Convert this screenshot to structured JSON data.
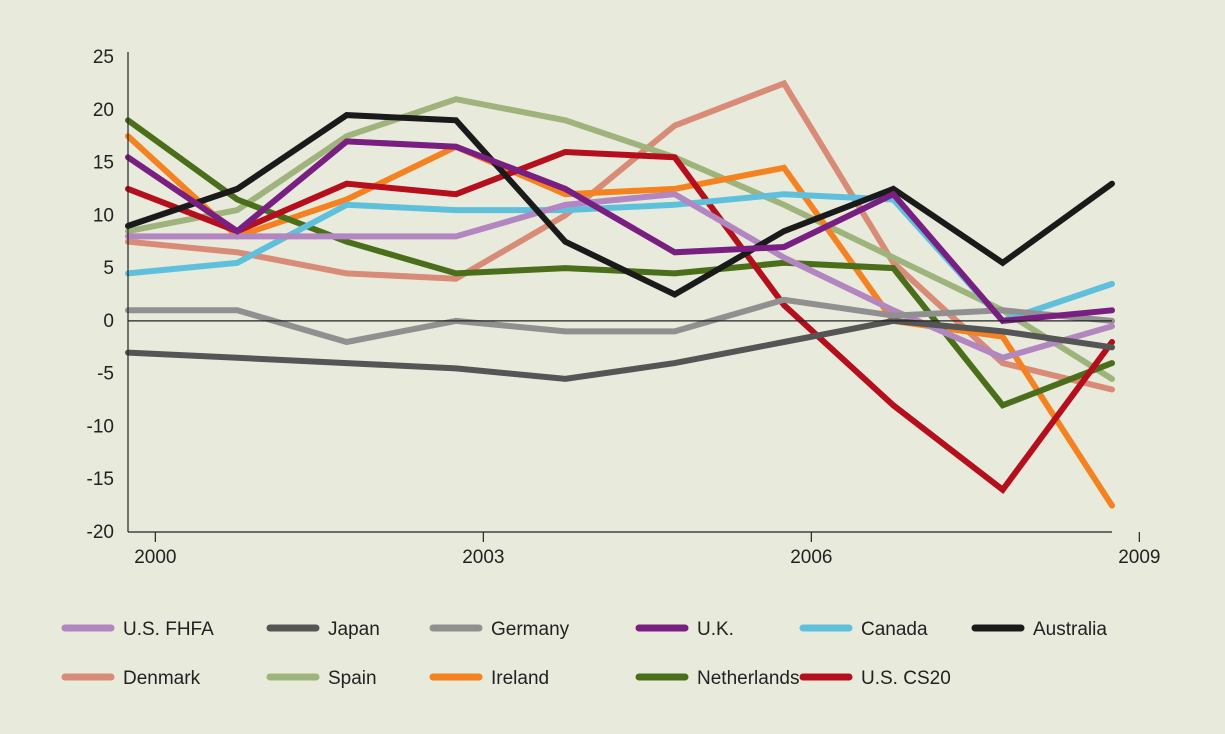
{
  "chart_data": {
    "type": "line",
    "title": "",
    "xlabel": "",
    "ylabel": "",
    "x": [
      1999.75,
      2000.75,
      2001.75,
      2002.75,
      2003.75,
      2004.75,
      2005.75,
      2006.75,
      2007.75,
      2008.75
    ],
    "xlim": [
      1999.75,
      2008.75
    ],
    "xticks": [
      2000,
      2003,
      2006,
      2009
    ],
    "xtick_labels": [
      "2000",
      "2003",
      "2006",
      "2009"
    ],
    "ylim": [
      -20,
      25
    ],
    "yticks": [
      25,
      20,
      15,
      10,
      5,
      0,
      -5,
      -10,
      -15,
      -20
    ],
    "ytick_labels": [
      "25",
      "20",
      "15",
      "10",
      "5",
      "0",
      "-5",
      "-10",
      "-15",
      "-20"
    ],
    "grid": false,
    "legend_position": "bottom",
    "series": [
      {
        "name": "Denmark",
        "color": "#d88c78",
        "values": [
          7.5,
          6.5,
          4.5,
          4.0,
          10.0,
          18.5,
          22.5,
          5.5,
          -4.0,
          -6.5
        ]
      },
      {
        "name": "Spain",
        "color": "#9fb47c",
        "values": [
          8.5,
          10.5,
          17.5,
          21.0,
          19.0,
          15.5,
          11.0,
          6.0,
          1.0,
          -5.5
        ]
      },
      {
        "name": "Ireland",
        "color": "#f58220",
        "values": [
          17.5,
          8.0,
          11.5,
          16.5,
          12.0,
          12.5,
          14.5,
          0.0,
          -1.5,
          -17.5
        ]
      },
      {
        "name": "Netherlands",
        "color": "#4a6e1a",
        "values": [
          19.0,
          11.5,
          7.5,
          4.5,
          5.0,
          4.5,
          5.5,
          5.0,
          -8.0,
          -4.0
        ]
      },
      {
        "name": "U.S. CS20",
        "color": "#b50f1e",
        "values": [
          12.5,
          8.5,
          13.0,
          12.0,
          16.0,
          15.5,
          1.5,
          -8.0,
          -16.0,
          -2.0
        ]
      },
      {
        "name": "Canada",
        "color": "#5fc0dc",
        "values": [
          4.5,
          5.5,
          11.0,
          10.5,
          10.5,
          11.0,
          12.0,
          11.5,
          0.0,
          3.5
        ]
      },
      {
        "name": "U.S. FHFA",
        "color": "#b286c0",
        "values": [
          8.0,
          8.0,
          8.0,
          8.0,
          11.0,
          12.0,
          6.0,
          1.0,
          -3.5,
          -0.5
        ]
      },
      {
        "name": "Japan",
        "color": "#555555",
        "values": [
          -3.0,
          -3.5,
          -4.0,
          -4.5,
          -5.5,
          -4.0,
          -2.0,
          0.0,
          -1.0,
          -2.5
        ]
      },
      {
        "name": "Germany",
        "color": "#909090",
        "values": [
          1.0,
          1.0,
          -2.0,
          0.0,
          -1.0,
          -1.0,
          2.0,
          0.5,
          1.0,
          0.0
        ]
      },
      {
        "name": "Australia",
        "color": "#1a1a1a",
        "values": [
          9.0,
          12.5,
          19.5,
          19.0,
          7.5,
          2.5,
          8.5,
          12.5,
          5.5,
          13.0
        ]
      },
      {
        "name": "U.K.",
        "color": "#7a1f82",
        "values": [
          15.5,
          8.5,
          17.0,
          16.5,
          12.5,
          6.5,
          7.0,
          12.0,
          0.0,
          1.0
        ]
      }
    ],
    "legend_order": [
      "U.S. FHFA",
      "Japan",
      "Germany",
      "U.K.",
      "Canada",
      "Australia",
      "Denmark",
      "Spain",
      "Ireland",
      "Netherlands",
      "U.S. CS20"
    ]
  }
}
